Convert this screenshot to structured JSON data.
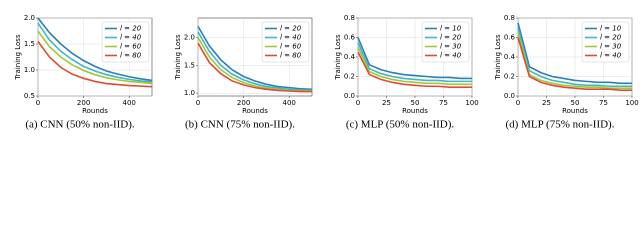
{
  "chart_data": [
    {
      "type": "line",
      "caption": "(a) CNN (50% non-IID).",
      "xlabel": "Rounds",
      "ylabel": "Training Loss",
      "x": [
        0,
        50,
        100,
        150,
        200,
        250,
        300,
        350,
        400,
        450,
        500
      ],
      "xlim": [
        0,
        500
      ],
      "xticks": [
        0,
        200,
        400
      ],
      "ylim": [
        0.5,
        2.0
      ],
      "yticks": [
        0.5,
        {
          "value": 1,
          "label": "1.0"
        },
        1.5,
        {
          "value": 2,
          "label": "2.0"
        }
      ],
      "grid": true,
      "legend": "upper right",
      "series": [
        {
          "name": "l = 20",
          "color": "#2c7fb8",
          "values": [
            2.0,
            1.72,
            1.5,
            1.32,
            1.18,
            1.07,
            0.98,
            0.92,
            0.87,
            0.83,
            0.8
          ]
        },
        {
          "name": "l = 40",
          "color": "#41b6c4",
          "values": [
            1.9,
            1.58,
            1.36,
            1.2,
            1.07,
            0.98,
            0.91,
            0.86,
            0.82,
            0.79,
            0.77
          ]
        },
        {
          "name": "l = 60",
          "color": "#a1c935",
          "values": [
            1.75,
            1.45,
            1.25,
            1.1,
            0.99,
            0.91,
            0.85,
            0.81,
            0.78,
            0.76,
            0.74
          ]
        },
        {
          "name": "l = 80",
          "color": "#e34a33",
          "values": [
            1.55,
            1.25,
            1.05,
            0.92,
            0.84,
            0.78,
            0.74,
            0.72,
            0.7,
            0.69,
            0.68
          ]
        }
      ]
    },
    {
      "type": "line",
      "caption": "(b) CNN (75% non-IID).",
      "xlabel": "Rounds",
      "ylabel": "Training Loss",
      "x": [
        0,
        50,
        100,
        150,
        200,
        250,
        300,
        350,
        400,
        450,
        500
      ],
      "xlim": [
        0,
        500
      ],
      "xticks": [
        0,
        200,
        400
      ],
      "ylim": [
        0.95,
        2.35
      ],
      "yticks": [
        {
          "value": 1,
          "label": "1.0"
        },
        1.5,
        {
          "value": 2,
          "label": "2.0"
        }
      ],
      "grid": true,
      "legend": "upper right",
      "series": [
        {
          "name": "l = 20",
          "color": "#2c7fb8",
          "values": [
            2.2,
            1.85,
            1.6,
            1.42,
            1.3,
            1.22,
            1.16,
            1.12,
            1.1,
            1.08,
            1.07
          ]
        },
        {
          "name": "l = 40",
          "color": "#41b6c4",
          "values": [
            2.1,
            1.75,
            1.5,
            1.34,
            1.24,
            1.17,
            1.12,
            1.09,
            1.07,
            1.06,
            1.05
          ]
        },
        {
          "name": "l = 60",
          "color": "#a1c935",
          "values": [
            2.0,
            1.65,
            1.42,
            1.28,
            1.19,
            1.13,
            1.09,
            1.07,
            1.05,
            1.04,
            1.04
          ]
        },
        {
          "name": "l = 80",
          "color": "#e34a33",
          "values": [
            1.9,
            1.55,
            1.35,
            1.22,
            1.15,
            1.1,
            1.07,
            1.05,
            1.04,
            1.03,
            1.03
          ]
        }
      ]
    },
    {
      "type": "line",
      "caption": "(c) MLP (50% non-IID).",
      "xlabel": "Rounds",
      "ylabel": "Training Loss",
      "x": [
        0,
        10,
        20,
        30,
        40,
        50,
        60,
        70,
        80,
        90,
        100
      ],
      "xlim": [
        0,
        100
      ],
      "xticks": [
        0,
        25,
        50,
        75,
        100
      ],
      "ylim": [
        0,
        0.8
      ],
      "yticks": [
        {
          "value": 0,
          "label": "0.0"
        },
        0.2,
        0.4,
        0.6,
        0.8
      ],
      "grid": true,
      "legend": "upper right",
      "series": [
        {
          "name": "l = 10",
          "color": "#2c7fb8",
          "values": [
            0.6,
            0.32,
            0.27,
            0.24,
            0.22,
            0.21,
            0.2,
            0.19,
            0.19,
            0.18,
            0.18
          ]
        },
        {
          "name": "l = 20",
          "color": "#41b6c4",
          "values": [
            0.55,
            0.28,
            0.23,
            0.2,
            0.18,
            0.17,
            0.16,
            0.16,
            0.15,
            0.15,
            0.15
          ]
        },
        {
          "name": "l = 30",
          "color": "#a1c935",
          "values": [
            0.5,
            0.25,
            0.2,
            0.17,
            0.15,
            0.14,
            0.13,
            0.13,
            0.12,
            0.12,
            0.12
          ]
        },
        {
          "name": "l = 40",
          "color": "#e34a33",
          "values": [
            0.45,
            0.22,
            0.17,
            0.14,
            0.12,
            0.11,
            0.1,
            0.1,
            0.09,
            0.09,
            0.09
          ]
        }
      ]
    },
    {
      "type": "line",
      "caption": "(d) MLP (75% non-IID).",
      "xlabel": "Rounds",
      "ylabel": "Training Loss",
      "x": [
        0,
        10,
        20,
        30,
        40,
        50,
        60,
        70,
        80,
        90,
        100
      ],
      "xlim": [
        0,
        100
      ],
      "xticks": [
        0,
        25,
        50,
        75,
        100
      ],
      "ylim": [
        0,
        0.8
      ],
      "yticks": [
        {
          "value": 0,
          "label": "0.0"
        },
        0.2,
        0.4,
        0.6,
        0.8
      ],
      "grid": true,
      "legend": "upper right",
      "series": [
        {
          "name": "l = 10",
          "color": "#2c7fb8",
          "values": [
            0.75,
            0.3,
            0.24,
            0.2,
            0.18,
            0.16,
            0.15,
            0.14,
            0.14,
            0.13,
            0.13
          ]
        },
        {
          "name": "l = 20",
          "color": "#41b6c4",
          "values": [
            0.7,
            0.26,
            0.2,
            0.16,
            0.14,
            0.12,
            0.11,
            0.11,
            0.1,
            0.1,
            0.1
          ]
        },
        {
          "name": "l = 30",
          "color": "#a1c935",
          "values": [
            0.65,
            0.22,
            0.16,
            0.13,
            0.11,
            0.1,
            0.09,
            0.09,
            0.08,
            0.08,
            0.08
          ]
        },
        {
          "name": "l = 40",
          "color": "#e34a33",
          "values": [
            0.6,
            0.2,
            0.14,
            0.11,
            0.09,
            0.08,
            0.07,
            0.07,
            0.07,
            0.06,
            0.06
          ]
        }
      ]
    }
  ]
}
